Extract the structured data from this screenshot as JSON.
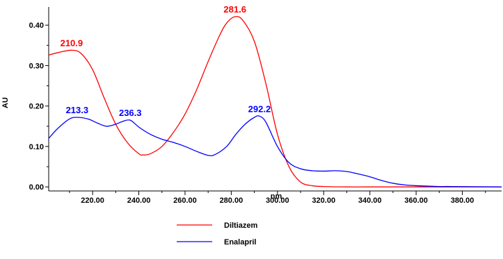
{
  "chart_data": {
    "type": "line",
    "xlabel": "nm",
    "ylabel": "AU",
    "xlim": [
      201,
      397
    ],
    "ylim": [
      -0.01,
      0.445
    ],
    "x_ticks": [
      220,
      240,
      260,
      280,
      300,
      320,
      340,
      360,
      380
    ],
    "x_tick_labels": [
      "220.00",
      "240.00",
      "260.00",
      "280.00",
      "300.00",
      "320.00",
      "340.00",
      "360.00",
      "380.00"
    ],
    "y_ticks": [
      0,
      0.1,
      0.2,
      0.3,
      0.4
    ],
    "y_tick_labels": [
      "0.00",
      "0.10",
      "0.20",
      "0.30",
      "0.40"
    ],
    "grid": false,
    "legend_position": "bottom-center",
    "series": [
      {
        "name": "Diltiazem",
        "color": "#ff0000",
        "points": [
          [
            201,
            0.326
          ],
          [
            205,
            0.332
          ],
          [
            210.9,
            0.338
          ],
          [
            215,
            0.33
          ],
          [
            220,
            0.29
          ],
          [
            225,
            0.22
          ],
          [
            230,
            0.155
          ],
          [
            235,
            0.11
          ],
          [
            240,
            0.082
          ],
          [
            242,
            0.079
          ],
          [
            245,
            0.082
          ],
          [
            250,
            0.1
          ],
          [
            255,
            0.135
          ],
          [
            260,
            0.18
          ],
          [
            265,
            0.24
          ],
          [
            270,
            0.31
          ],
          [
            275,
            0.375
          ],
          [
            278,
            0.405
          ],
          [
            281.6,
            0.421
          ],
          [
            285,
            0.412
          ],
          [
            290,
            0.36
          ],
          [
            295,
            0.255
          ],
          [
            300,
            0.13
          ],
          [
            305,
            0.05
          ],
          [
            310,
            0.012
          ],
          [
            315,
            0.003
          ],
          [
            320,
            0.001
          ],
          [
            330,
            0.0
          ],
          [
            340,
            0.0
          ],
          [
            360,
            0.0
          ],
          [
            380,
            0.0
          ],
          [
            397,
            0.0
          ]
        ],
        "peaks": [
          {
            "x": 210.9,
            "y": 0.338,
            "label": "210.9"
          },
          {
            "x": 281.6,
            "y": 0.421,
            "label": "281.6"
          }
        ]
      },
      {
        "name": "Enalapril",
        "color": "#0000ff",
        "points": [
          [
            201,
            0.12
          ],
          [
            205,
            0.145
          ],
          [
            210,
            0.168
          ],
          [
            213.3,
            0.172
          ],
          [
            218,
            0.168
          ],
          [
            222,
            0.158
          ],
          [
            226,
            0.15
          ],
          [
            230,
            0.155
          ],
          [
            233,
            0.162
          ],
          [
            236.3,
            0.165
          ],
          [
            240,
            0.148
          ],
          [
            245,
            0.13
          ],
          [
            250,
            0.118
          ],
          [
            255,
            0.11
          ],
          [
            260,
            0.1
          ],
          [
            265,
            0.088
          ],
          [
            270,
            0.078
          ],
          [
            273,
            0.08
          ],
          [
            278,
            0.1
          ],
          [
            282,
            0.13
          ],
          [
            286,
            0.155
          ],
          [
            290,
            0.172
          ],
          [
            292.2,
            0.175
          ],
          [
            295,
            0.16
          ],
          [
            300,
            0.1
          ],
          [
            305,
            0.06
          ],
          [
            310,
            0.045
          ],
          [
            315,
            0.04
          ],
          [
            320,
            0.039
          ],
          [
            325,
            0.04
          ],
          [
            330,
            0.038
          ],
          [
            335,
            0.032
          ],
          [
            340,
            0.025
          ],
          [
            345,
            0.016
          ],
          [
            350,
            0.009
          ],
          [
            355,
            0.005
          ],
          [
            360,
            0.003
          ],
          [
            370,
            0.001
          ],
          [
            375,
            0.001
          ],
          [
            397,
            0.0
          ]
        ],
        "peaks": [
          {
            "x": 213.3,
            "y": 0.172,
            "label": "213.3"
          },
          {
            "x": 236.3,
            "y": 0.165,
            "label": "236.3"
          },
          {
            "x": 292.2,
            "y": 0.175,
            "label": "292.2"
          }
        ]
      }
    ]
  }
}
